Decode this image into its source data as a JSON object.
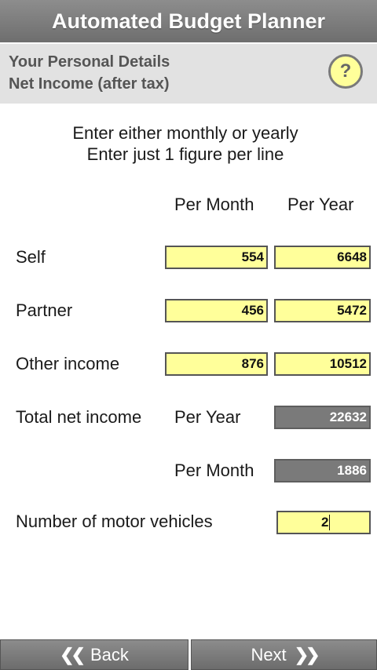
{
  "app": {
    "title": "Automated Budget Planner"
  },
  "header": {
    "line1": "Your Personal Details",
    "line2": "Net Income (after tax)",
    "help_symbol": "?"
  },
  "instructions": {
    "line1": "Enter either monthly or yearly",
    "line2": "Enter just 1 figure per line"
  },
  "columns": {
    "month": "Per Month",
    "year": "Per Year"
  },
  "rows": {
    "self": {
      "label": "Self",
      "month": "554",
      "year": "6648"
    },
    "partner": {
      "label": "Partner",
      "month": "456",
      "year": "5472"
    },
    "other": {
      "label": "Other income",
      "month": "876",
      "year": "10512"
    }
  },
  "totals": {
    "label": "Total net income",
    "year_label": "Per Year",
    "year_value": "22632",
    "month_label": "Per Month",
    "month_value": "1886"
  },
  "vehicles": {
    "label": "Number of motor vehicles",
    "value": "2"
  },
  "nav": {
    "back_label": "Back",
    "next_label": "Next",
    "back_icon": "double-chevron-left-icon",
    "next_icon": "double-chevron-right-icon"
  },
  "colors": {
    "input_fill": "#ffff9a",
    "readonly_fill": "#7a7a7a",
    "titlebar": "#7d7d7d"
  }
}
